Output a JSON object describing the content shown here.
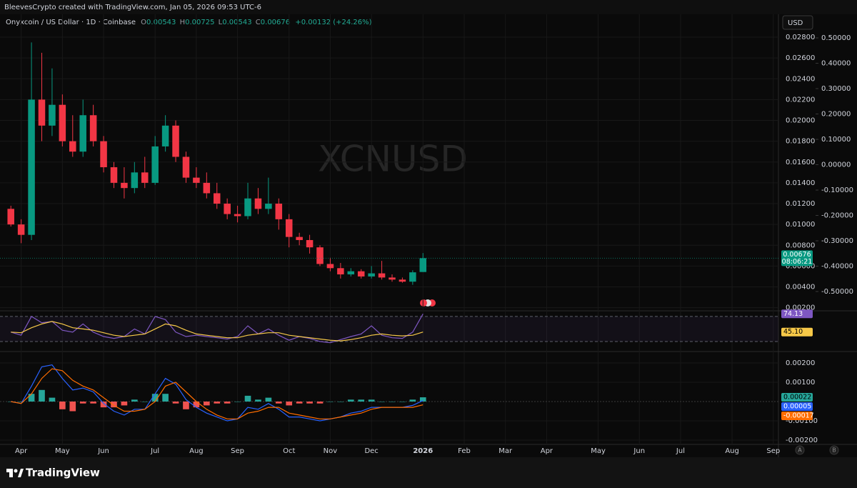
{
  "header": {
    "attribution": "BleevesCrypto created with TradingView.com, Jan 05, 2026 09:53 UTC-6",
    "symbol": "Onyxcoin / US Dollar · 1D · Coinbase",
    "ohlc": [
      {
        "key": "O",
        "value": "0.00543"
      },
      {
        "key": "H",
        "value": "0.00725"
      },
      {
        "key": "L",
        "value": "0.00543"
      },
      {
        "key": "C",
        "value": "0.00676"
      }
    ],
    "change": "+0.00132 (+24.26%)",
    "currency": "USD"
  },
  "watermark": "XCNUSD",
  "footer": {
    "brand": "TradingView",
    "scale_buttons": [
      "A",
      "B"
    ]
  },
  "chart_data": [
    {
      "type": "candlestick",
      "categories": [
        null,
        "Apr",
        null,
        null,
        null,
        "May",
        null,
        null,
        null,
        "Jun",
        null,
        null,
        null,
        null,
        "Jul",
        null,
        null,
        null,
        "Aug",
        null,
        null,
        null,
        "Sep",
        null,
        null,
        null,
        null,
        "Oct",
        null,
        null,
        null,
        "Nov",
        null,
        null,
        null,
        "Dec",
        null,
        null,
        null,
        null,
        "2026",
        null,
        null,
        null,
        "Feb",
        null,
        null,
        null,
        "Mar",
        null,
        null,
        null,
        "Apr",
        null,
        null,
        null,
        null,
        "May",
        null,
        null,
        null,
        "Jun",
        null,
        null,
        null,
        "Jul",
        null,
        null,
        null,
        null,
        "Aug",
        null,
        null,
        null,
        "Sep"
      ],
      "open": [
        0.0115,
        0.01,
        0.009,
        0.022,
        0.0195,
        0.0215,
        0.018,
        0.017,
        0.0205,
        0.018,
        0.0155,
        0.014,
        0.0135,
        0.015,
        0.014,
        0.0175,
        0.0195,
        0.0165,
        0.0145,
        0.014,
        0.013,
        0.012,
        0.011,
        0.0108,
        0.0125,
        0.0115,
        0.012,
        0.0105,
        0.0088,
        0.0085,
        0.0078,
        0.0062,
        0.0058,
        0.0052,
        0.0055,
        0.005,
        0.0053,
        0.0049,
        0.0047,
        0.0045,
        0.00543,
        null,
        null,
        null,
        null,
        null,
        null,
        null,
        null,
        null,
        null,
        null,
        null,
        null,
        null,
        null,
        null,
        null,
        null,
        null,
        null,
        null,
        null,
        null,
        null,
        null,
        null,
        null,
        null,
        null,
        null,
        null,
        null,
        null,
        null
      ],
      "high": [
        0.0118,
        0.0105,
        0.0275,
        0.0265,
        0.025,
        0.0225,
        0.0205,
        0.022,
        0.0215,
        0.0185,
        0.016,
        0.0155,
        0.016,
        0.0165,
        0.0185,
        0.0205,
        0.02,
        0.017,
        0.0155,
        0.015,
        0.014,
        0.0125,
        0.0118,
        0.014,
        0.0135,
        0.0145,
        0.0125,
        0.011,
        0.0092,
        0.009,
        0.008,
        0.0068,
        0.0063,
        0.0058,
        0.0057,
        0.006,
        0.0065,
        0.0052,
        0.0049,
        0.0056,
        0.00725,
        null,
        null,
        null,
        null,
        null,
        null,
        null,
        null,
        null,
        null,
        null,
        null,
        null,
        null,
        null,
        null,
        null,
        null,
        null,
        null,
        null,
        null,
        null,
        null,
        null,
        null,
        null,
        null,
        null,
        null,
        null,
        null,
        null,
        null
      ],
      "low": [
        0.0098,
        0.0082,
        0.0085,
        0.018,
        0.0185,
        0.0175,
        0.0165,
        0.0165,
        0.0175,
        0.015,
        0.0135,
        0.0125,
        0.013,
        0.0135,
        0.0138,
        0.017,
        0.016,
        0.014,
        0.0135,
        0.0125,
        0.0115,
        0.0105,
        0.0102,
        0.0105,
        0.011,
        0.011,
        0.0095,
        0.0078,
        0.008,
        0.0072,
        0.006,
        0.0055,
        0.0048,
        0.005,
        0.0048,
        0.0048,
        0.0047,
        0.0045,
        0.0044,
        0.0042,
        0.00543,
        null,
        null,
        null,
        null,
        null,
        null,
        null,
        null,
        null,
        null,
        null,
        null,
        null,
        null,
        null,
        null,
        null,
        null,
        null,
        null,
        null,
        null,
        null,
        null,
        null,
        null,
        null,
        null,
        null,
        null,
        null,
        null,
        null,
        null
      ],
      "close": [
        0.01,
        0.009,
        0.022,
        0.0195,
        0.0215,
        0.018,
        0.017,
        0.0205,
        0.018,
        0.0155,
        0.014,
        0.0135,
        0.015,
        0.014,
        0.0175,
        0.0195,
        0.0165,
        0.0145,
        0.014,
        0.013,
        0.012,
        0.011,
        0.0108,
        0.0125,
        0.0115,
        0.012,
        0.0105,
        0.0088,
        0.0085,
        0.0078,
        0.0062,
        0.0058,
        0.0052,
        0.0055,
        0.005,
        0.0053,
        0.0049,
        0.0047,
        0.0045,
        0.0054,
        0.00676,
        null,
        null,
        null,
        null,
        null,
        null,
        null,
        null,
        null,
        null,
        null,
        null,
        null,
        null,
        null,
        null,
        null,
        null,
        null,
        null,
        null,
        null,
        null,
        null,
        null,
        null,
        null,
        null,
        null,
        null,
        null,
        null,
        null,
        null
      ],
      "up_color": "#089981",
      "down_color": "#f23645",
      "ylim": [
        0.0017,
        0.0302
      ],
      "yticks": [
        {
          "value": 0.002,
          "label": "0.00200"
        },
        {
          "value": 0.004,
          "label": "0.00400"
        },
        {
          "value": 0.006,
          "label": "0.00600"
        },
        {
          "value": 0.008,
          "label": "0.00800"
        },
        {
          "value": 0.01,
          "label": "0.01000"
        },
        {
          "value": 0.012,
          "label": "0.01200"
        },
        {
          "value": 0.014,
          "label": "0.01400"
        },
        {
          "value": 0.016,
          "label": "0.01600"
        },
        {
          "value": 0.018,
          "label": "0.01800"
        },
        {
          "value": 0.02,
          "label": "0.02000"
        },
        {
          "value": 0.022,
          "label": "0.02200"
        },
        {
          "value": 0.024,
          "label": "0.02400"
        },
        {
          "value": 0.026,
          "label": "0.02600"
        },
        {
          "value": 0.028,
          "label": "0.02800"
        }
      ],
      "y2lim": [
        -0.576,
        0.593
      ],
      "y2ticks": [
        {
          "value": 0.5,
          "label": "0.50000"
        },
        {
          "value": 0.4,
          "label": "0.40000"
        },
        {
          "value": 0.3,
          "label": "0.30000"
        },
        {
          "value": 0.2,
          "label": "0.20000"
        },
        {
          "value": 0.1,
          "label": "0.10000"
        },
        {
          "value": 0,
          "label": "0.00000"
        },
        {
          "value": -0.1,
          "label": "-0.10000"
        },
        {
          "value": -0.2,
          "label": "-0.20000"
        },
        {
          "value": -0.3,
          "label": "-0.30000"
        },
        {
          "value": -0.4,
          "label": "-0.40000"
        },
        {
          "value": -0.5,
          "label": "-0.50000"
        }
      ],
      "last_price": 0.00676,
      "countdown": "08:06:21",
      "grid": true
    },
    {
      "type": "rsi",
      "series": [
        {
          "color": "#7e57c2",
          "values": [
            45,
            40,
            70,
            60,
            62,
            48,
            45,
            58,
            45,
            38,
            35,
            38,
            50,
            42,
            70,
            65,
            45,
            38,
            40,
            38,
            36,
            34,
            38,
            55,
            42,
            50,
            40,
            32,
            38,
            35,
            30,
            28,
            33,
            38,
            42,
            55,
            40,
            36,
            35,
            45,
            74.13
          ]
        },
        {
          "color": "#f7c948",
          "values": [
            45,
            44,
            52,
            58,
            62,
            58,
            52,
            50,
            48,
            44,
            40,
            38,
            40,
            42,
            50,
            58,
            55,
            48,
            42,
            40,
            38,
            36,
            36,
            40,
            42,
            44,
            44,
            40,
            38,
            36,
            34,
            32,
            31,
            33,
            36,
            40,
            42,
            40,
            39,
            40,
            45.1
          ],
          "last_value_label": "45.10"
        }
      ],
      "hlines": [
        70,
        30
      ],
      "ylim": [
        14,
        79
      ]
    },
    {
      "type": "macd",
      "histogram": {
        "up_color": "#26a69a",
        "down_color": "#ef5350",
        "values": [
          0,
          0,
          0.0004,
          0.0006,
          0.0002,
          -0.0004,
          -0.0005,
          -0.0001,
          -0.0001,
          -0.0003,
          -0.0003,
          -0.0002,
          0.0001,
          0,
          0.0004,
          0.0004,
          -0.0001,
          -0.0004,
          -0.0003,
          -0.0002,
          -0.0001,
          -0.0001,
          0,
          0.0003,
          0.0001,
          0.0002,
          -0.0001,
          -0.0002,
          -0.0001,
          -0.0001,
          -0.0001,
          0,
          0,
          0.0001,
          0.0001,
          0.0001,
          0,
          0,
          0,
          0.0001,
          0.00022
        ]
      },
      "macd": {
        "color": "#2962ff",
        "values": [
          0,
          -0.0001,
          0.0008,
          0.0018,
          0.0019,
          0.0012,
          0.0006,
          0.0007,
          0.0005,
          -0.0001,
          -0.0005,
          -0.0007,
          -0.0004,
          -0.0004,
          0.0004,
          0.0012,
          0.0009,
          0.0001,
          -0.0003,
          -0.0006,
          -0.0008,
          -0.001,
          -0.0009,
          -0.0003,
          -0.0004,
          -0.0001,
          -0.0004,
          -0.0008,
          -0.0008,
          -0.0009,
          -0.001,
          -0.0009,
          -0.0008,
          -0.0006,
          -0.0005,
          -0.0003,
          -0.0003,
          -0.0003,
          -0.0003,
          -0.0002,
          5e-05
        ]
      },
      "signal": {
        "color": "#ff6d00",
        "values": [
          0,
          -0.0001,
          0.0004,
          0.0012,
          0.0017,
          0.0016,
          0.0011,
          0.0008,
          0.0006,
          0.0002,
          -0.0002,
          -0.0005,
          -0.0005,
          -0.0004,
          0,
          0.0008,
          0.001,
          0.0005,
          0,
          -0.0004,
          -0.0007,
          -0.0009,
          -0.0009,
          -0.0006,
          -0.0005,
          -0.0003,
          -0.0003,
          -0.0006,
          -0.0007,
          -0.0008,
          -0.0009,
          -0.0009,
          -0.0008,
          -0.0007,
          -0.0006,
          -0.0004,
          -0.0003,
          -0.0003,
          -0.0003,
          -0.0003,
          -0.00017
        ]
      },
      "ylim": [
        -0.00222,
        0.00259
      ],
      "yticks": [
        {
          "value": 0.002,
          "label": "0.00200"
        },
        {
          "value": 0.001,
          "label": "0.00100"
        },
        {
          "value": -0.001,
          "label": "-0.00100"
        },
        {
          "value": -0.002,
          "label": "-0.00200"
        }
      ]
    }
  ]
}
